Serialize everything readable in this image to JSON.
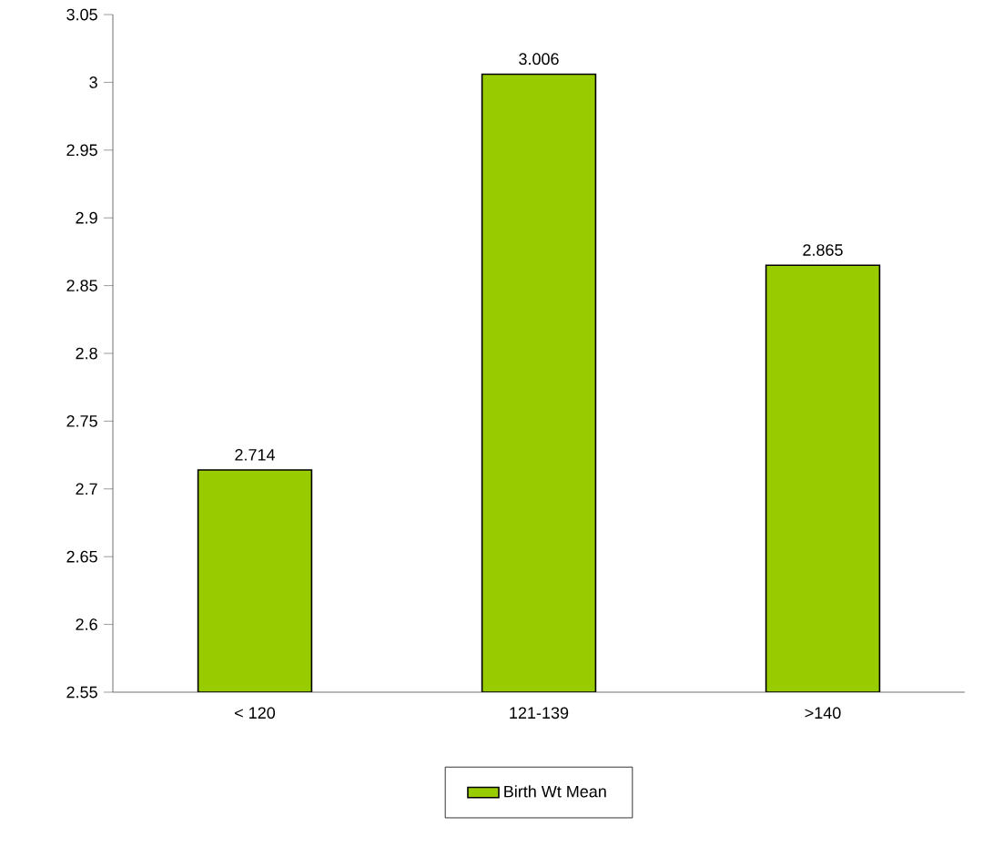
{
  "chart_data": {
    "type": "bar",
    "categories": [
      "< 120",
      "121-139",
      ">140"
    ],
    "series": [
      {
        "name": "Birth Wt Mean",
        "color": "#99cc00",
        "values": [
          2.714,
          3.006,
          2.865
        ]
      }
    ],
    "ylim": [
      2.55,
      3.05
    ],
    "yticks": [
      2.55,
      2.6,
      2.65,
      2.7,
      2.75,
      2.8,
      2.85,
      2.9,
      2.95,
      3,
      3.05
    ],
    "data_labels": true,
    "grid": false,
    "legend": "bottom"
  }
}
